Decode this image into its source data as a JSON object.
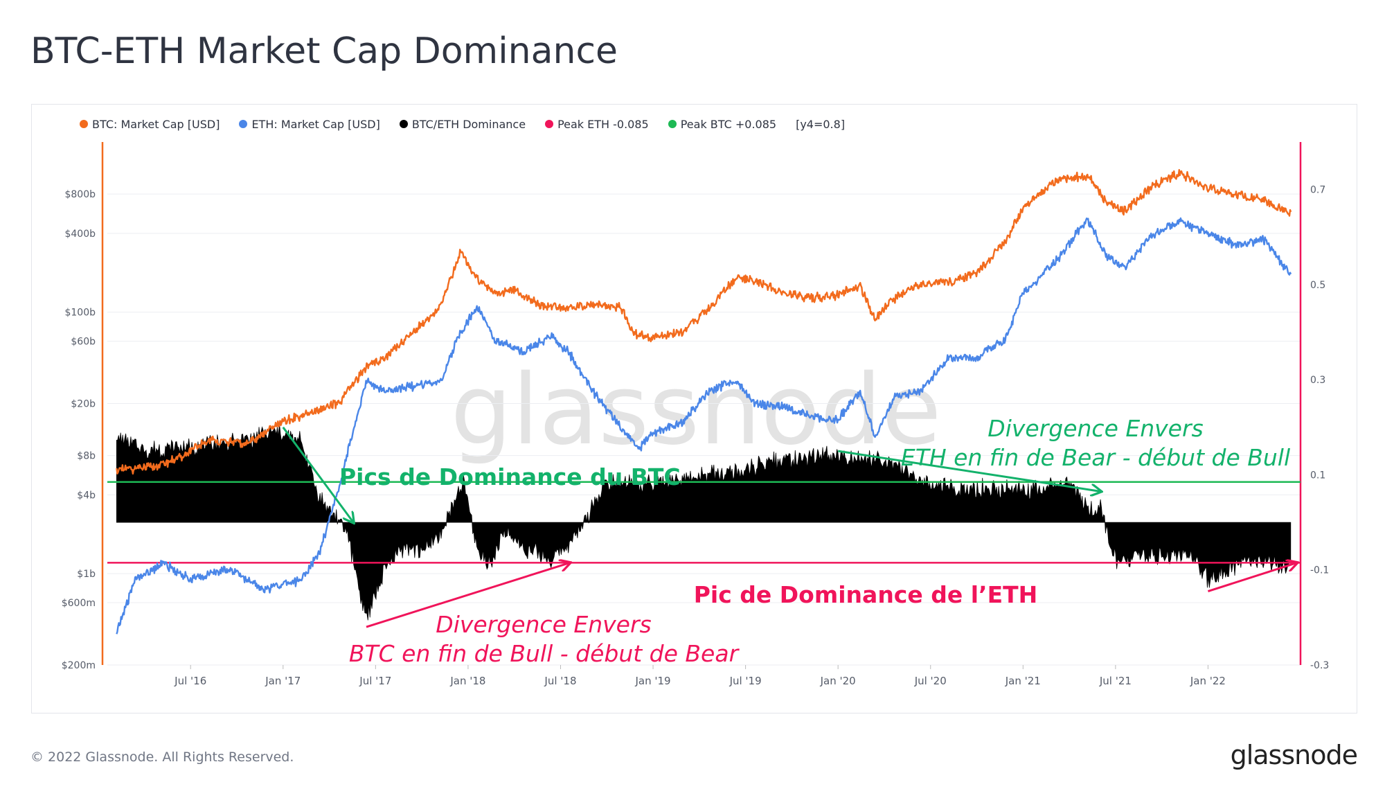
{
  "page": {
    "title": "BTC-ETH Market Cap Dominance",
    "copyright": "© 2022 Glassnode. All Rights Reserved.",
    "brand": "glassnode",
    "watermark": "glassnode"
  },
  "colors": {
    "btc": "#f26b1d",
    "eth": "#4a86e8",
    "dominance": "#000000",
    "peak_eth": "#f0145a",
    "peak_btc": "#1db954",
    "annotation_green": "#13b26b",
    "annotation_pink": "#f0145a"
  },
  "legend": [
    {
      "label": "BTC: Market Cap [USD]",
      "color": "#f26b1d"
    },
    {
      "label": "ETH: Market Cap [USD]",
      "color": "#4a86e8"
    },
    {
      "label": "BTC/ETH Dominance",
      "color": "#000000"
    },
    {
      "label": "Peak ETH -0.085",
      "color": "#f0145a"
    },
    {
      "label": "Peak BTC +0.085",
      "color": "#1db954"
    },
    {
      "label": "[y4=0.8]",
      "color": ""
    }
  ],
  "chart_data": {
    "type": "line",
    "title": "BTC-ETH Market Cap Dominance",
    "x_ticks": [
      "Jul '16",
      "Jan '17",
      "Jul '17",
      "Jan '18",
      "Jul '18",
      "Jan '19",
      "Jul '19",
      "Jan '20",
      "Jul '20",
      "Jan '21",
      "Jul '21",
      "Jan '22"
    ],
    "x_range": [
      "2016-02",
      "2022-06"
    ],
    "y_left": {
      "scale": "log",
      "ticks": [
        "$200m",
        "$600m",
        "$1b",
        "$4b",
        "$8b",
        "$20b",
        "$60b",
        "$100b",
        "$400b",
        "$800b"
      ],
      "tick_values": [
        0.2,
        0.6,
        1,
        4,
        8,
        20,
        60,
        100,
        400,
        800
      ],
      "unit": "USD billions"
    },
    "y_right": {
      "scale": "linear",
      "ticks": [
        "-0.3",
        "-0.1",
        "0.1",
        "0.3",
        "0.5",
        "0.7"
      ],
      "tick_values": [
        -0.3,
        -0.1,
        0.1,
        0.3,
        0.5,
        0.7
      ],
      "range": [
        -0.3,
        0.8
      ]
    },
    "series": [
      {
        "name": "BTC: Market Cap [USD]",
        "axis": "left",
        "t": [
          2016.1,
          2016.3,
          2016.45,
          2016.6,
          2016.8,
          2017.0,
          2017.15,
          2017.3,
          2017.45,
          2017.55,
          2017.7,
          2017.85,
          2017.96,
          2018.05,
          2018.15,
          2018.25,
          2018.4,
          2018.55,
          2018.7,
          2018.82,
          2018.9,
          2019.0,
          2019.15,
          2019.3,
          2019.45,
          2019.55,
          2019.7,
          2019.85,
          2020.0,
          2020.12,
          2020.2,
          2020.3,
          2020.45,
          2020.6,
          2020.75,
          2020.9,
          2021.0,
          2021.1,
          2021.2,
          2021.35,
          2021.45,
          2021.55,
          2021.7,
          2021.85,
          2022.0,
          2022.15,
          2022.3,
          2022.45
        ],
        "values": [
          6.2,
          6.5,
          7.8,
          10.5,
          9.8,
          14.5,
          17,
          20,
          38,
          45,
          70,
          110,
          290,
          180,
          140,
          145,
          112,
          108,
          115,
          110,
          68,
          63,
          70,
          105,
          185,
          175,
          140,
          128,
          135,
          160,
          88,
          125,
          165,
          170,
          200,
          340,
          620,
          830,
          1050,
          1100,
          700,
          600,
          920,
          1150,
          900,
          780,
          720,
          560
        ]
      },
      {
        "name": "ETH: Market Cap [USD]",
        "axis": "left",
        "t": [
          2016.1,
          2016.2,
          2016.35,
          2016.5,
          2016.7,
          2016.9,
          2017.1,
          2017.2,
          2017.3,
          2017.45,
          2017.55,
          2017.7,
          2017.85,
          2017.96,
          2018.05,
          2018.15,
          2018.3,
          2018.45,
          2018.55,
          2018.7,
          2018.85,
          2018.92,
          2019.0,
          2019.15,
          2019.3,
          2019.45,
          2019.55,
          2019.7,
          2019.85,
          2020.0,
          2020.12,
          2020.2,
          2020.3,
          2020.45,
          2020.6,
          2020.75,
          2020.9,
          2021.0,
          2021.1,
          2021.2,
          2021.35,
          2021.45,
          2021.55,
          2021.7,
          2021.85,
          2022.0,
          2022.15,
          2022.3,
          2022.45
        ],
        "values": [
          0.35,
          0.9,
          1.2,
          0.9,
          1.1,
          0.75,
          0.9,
          1.5,
          4.5,
          30,
          25,
          27,
          30,
          70,
          110,
          60,
          50,
          65,
          48,
          22,
          12,
          9,
          12,
          14,
          25,
          30,
          20,
          19,
          16,
          15,
          25,
          11,
          22,
          25,
          45,
          45,
          60,
          140,
          190,
          270,
          520,
          270,
          220,
          390,
          490,
          400,
          330,
          360,
          190
        ]
      },
      {
        "name": "BTC/ETH Dominance",
        "axis": "right",
        "type": "area",
        "t": [
          2016.1,
          2016.25,
          2016.5,
          2016.75,
          2016.95,
          2017.1,
          2017.2,
          2017.27,
          2017.35,
          2017.4,
          2017.45,
          2017.55,
          2017.65,
          2017.75,
          2017.85,
          2017.92,
          2017.98,
          2018.05,
          2018.12,
          2018.2,
          2018.3,
          2018.45,
          2018.6,
          2018.75,
          2018.9,
          2019.1,
          2019.3,
          2019.5,
          2019.7,
          2019.9,
          2020.1,
          2020.3,
          2020.5,
          2020.7,
          2020.9,
          2021.1,
          2021.25,
          2021.35,
          2021.42,
          2021.5,
          2021.7,
          2021.9,
          2022.0,
          2022.2,
          2022.45
        ],
        "values": [
          0.18,
          0.15,
          0.16,
          0.17,
          0.19,
          0.17,
          0.05,
          0.02,
          -0.02,
          -0.12,
          -0.2,
          -0.1,
          -0.05,
          -0.06,
          -0.03,
          0.04,
          0.08,
          -0.06,
          -0.09,
          -0.02,
          -0.05,
          -0.08,
          -0.02,
          0.09,
          0.08,
          0.08,
          0.1,
          0.11,
          0.13,
          0.14,
          0.14,
          0.12,
          0.08,
          0.07,
          0.07,
          0.07,
          0.09,
          0.03,
          0.03,
          -0.08,
          -0.07,
          -0.07,
          -0.12,
          -0.08,
          -0.09
        ]
      },
      {
        "name": "Peak ETH -0.085",
        "axis": "right",
        "type": "hline",
        "value": -0.085
      },
      {
        "name": "Peak BTC +0.085",
        "axis": "right",
        "type": "hline",
        "value": 0.085
      }
    ],
    "annotations": [
      {
        "text": "Pics de Dominance du BTC",
        "color": "green",
        "bold": true
      },
      {
        "text": "Divergence Envers",
        "color": "green"
      },
      {
        "text": "ETH en fin de Bear - début de Bull",
        "color": "green"
      },
      {
        "text": "Pic de Dominance de l’ETH",
        "color": "pink",
        "bold": true
      },
      {
        "text": "Divergence Envers",
        "color": "pink"
      },
      {
        "text": "BTC en fin de Bull - début de Bear",
        "color": "pink"
      }
    ],
    "arrows": [
      {
        "color": "green",
        "from_t": 2017.0,
        "from_v": 0.2,
        "to_t": 2017.38,
        "to_v": 0.0
      },
      {
        "color": "green",
        "from_t": 2020.0,
        "from_v": 0.15,
        "to_t": 2021.42,
        "to_v": 0.065
      },
      {
        "color": "pink",
        "from_t": 2017.45,
        "from_v": -0.22,
        "to_t": 2018.55,
        "to_v": -0.085
      },
      {
        "color": "pink",
        "from_t": 2022.0,
        "from_v": -0.145,
        "to_t": 2022.48,
        "to_v": -0.085
      }
    ]
  }
}
